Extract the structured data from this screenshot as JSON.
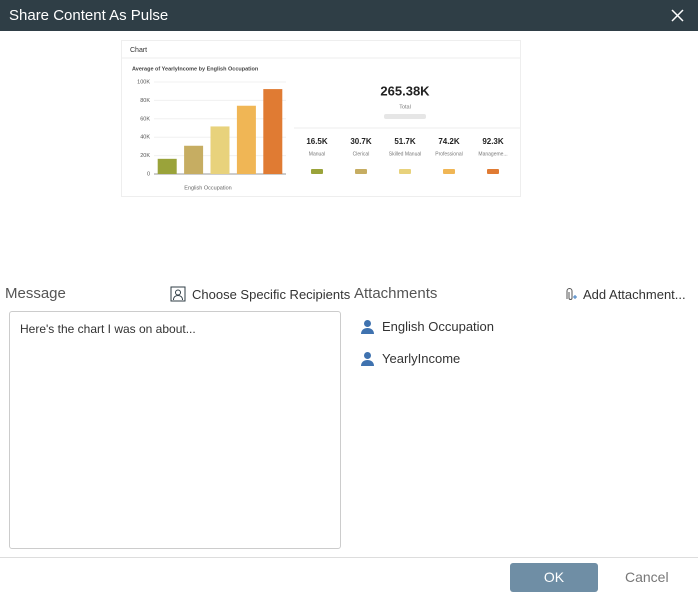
{
  "dialog": {
    "title": "Share Content As Pulse"
  },
  "chart_data": {
    "type": "bar",
    "title": "Chart",
    "subtitle": "Average of YearlyIncome by English Occupation",
    "x_label": "English Occupation",
    "categories": [
      "Manual",
      "Clerical",
      "Skilled Manual",
      "Professional",
      "Manageme..."
    ],
    "values": [
      16500,
      30700,
      51700,
      74200,
      92300
    ],
    "value_labels": [
      "16.5K",
      "30.7K",
      "51.7K",
      "74.2K",
      "92.3K"
    ],
    "colors": [
      "#9aa33a",
      "#c6ad62",
      "#e8d27c",
      "#f0b655",
      "#e07b33"
    ],
    "ylim": [
      0,
      100000
    ],
    "yticks": [
      0,
      {
        "value": 20000,
        "label": "20K"
      },
      {
        "value": 40000,
        "label": "40K"
      },
      {
        "value": 60000,
        "label": "60K"
      },
      {
        "value": 80000,
        "label": "80K"
      },
      {
        "value": 100000,
        "label": "100K"
      }
    ],
    "grid": true,
    "total": 265380,
    "total_label": "265.38K",
    "total_caption": "Total"
  },
  "message": {
    "label": "Message",
    "recipients": "Choose Specific Recipients",
    "text": "Here's the chart I was on about..."
  },
  "attachments": {
    "label": "Attachments",
    "add": "Add Attachment...",
    "items": [
      "English Occupation",
      "YearlyIncome"
    ]
  },
  "buttons": {
    "ok": "OK",
    "cancel": "Cancel"
  }
}
